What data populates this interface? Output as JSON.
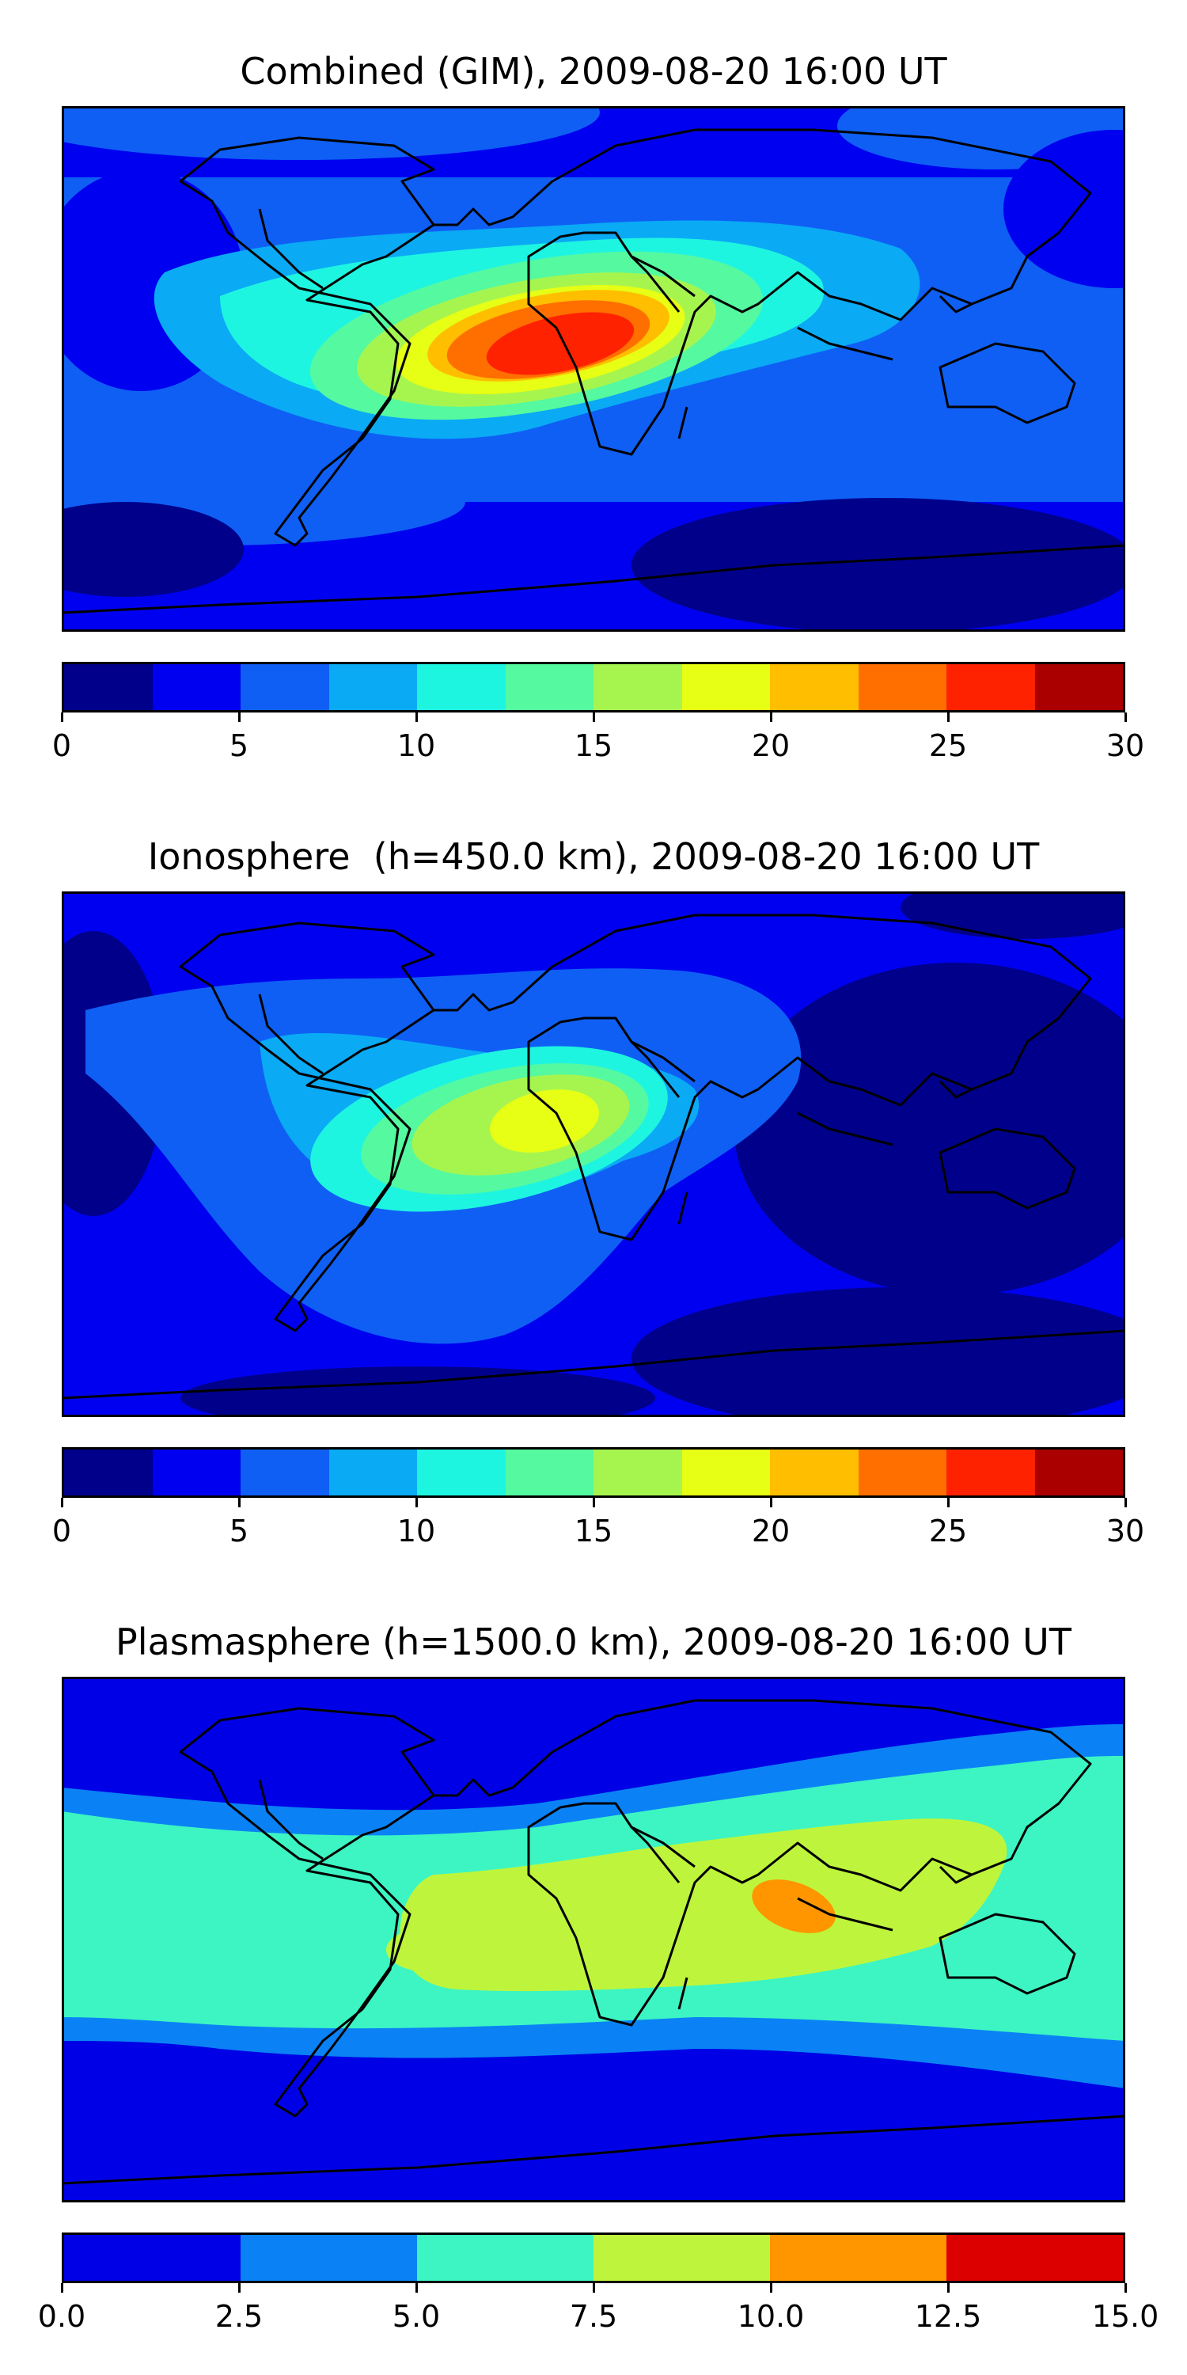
{
  "panels": [
    {
      "id": "combined",
      "title": "Combined (GIM), 2009-08-20 16:00 UT",
      "colorbar": {
        "colors": [
          "#00008b",
          "#0000f0",
          "#0f5ff5",
          "#0aaaf5",
          "#1ef5e1",
          "#55f9a0",
          "#a6f54f",
          "#e6ff14",
          "#ffbe00",
          "#ff6f00",
          "#ff2200",
          "#aa0000"
        ],
        "ticks": [
          "0",
          "5",
          "10",
          "15",
          "20",
          "25",
          "30"
        ]
      }
    },
    {
      "id": "ionosphere",
      "title": "Ionosphere  (h=450.0 km), 2009-08-20 16:00 UT",
      "colorbar": {
        "colors": [
          "#00008b",
          "#0000f0",
          "#0f5ff5",
          "#0aaaf5",
          "#1ef5e1",
          "#55f9a0",
          "#a6f54f",
          "#e6ff14",
          "#ffbe00",
          "#ff6f00",
          "#ff2200",
          "#aa0000"
        ],
        "ticks": [
          "0",
          "5",
          "10",
          "15",
          "20",
          "25",
          "30"
        ]
      }
    },
    {
      "id": "plasmasphere",
      "title": "Plasmasphere (h=1500.0 km), 2009-08-20 16:00 UT",
      "colorbar": {
        "colors": [
          "#0000e6",
          "#0a82f5",
          "#3cf5c3",
          "#bef53c",
          "#ff9600",
          "#dc0000"
        ],
        "ticks": [
          "0.0",
          "2.5",
          "5.0",
          "7.5",
          "10.0",
          "12.5",
          "15.0"
        ]
      }
    }
  ]
}
